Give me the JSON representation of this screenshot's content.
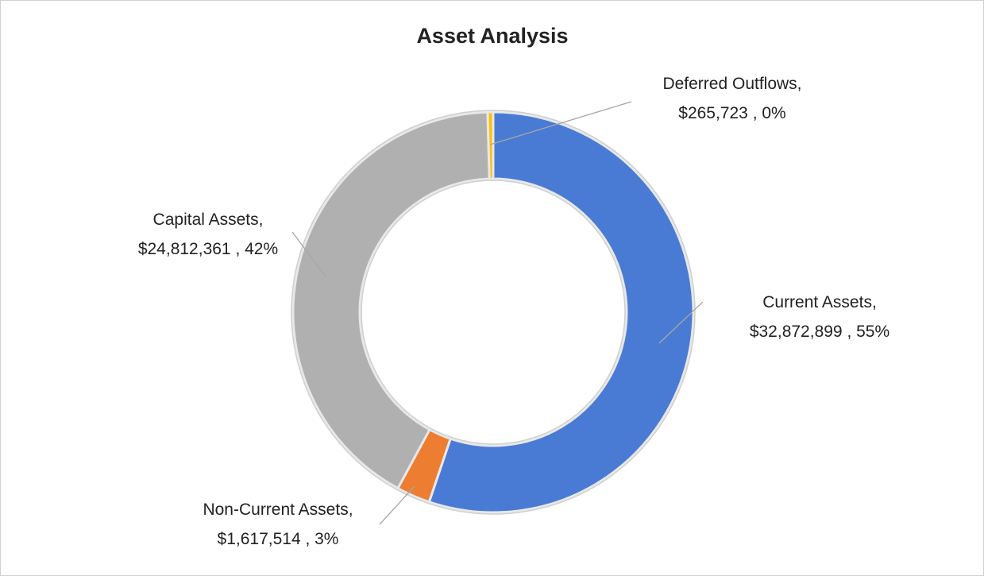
{
  "chart_data": {
    "type": "donut",
    "title": "Asset Analysis",
    "categories": [
      "Current Assets,",
      "Non-Current Assets,",
      "Capital Assets,",
      "Deferred Outflows,"
    ],
    "values": [
      32872899,
      1617514,
      24812361,
      265723
    ],
    "value_labels": [
      "$32,872,899 , 55%",
      "$1,617,514 , 3%",
      "$24,812,361 , 42%",
      "$265,723 , 0%"
    ],
    "colors": [
      "#4a7bd4",
      "#ed7d31",
      "#b0b0b0",
      "#ffc000"
    ]
  }
}
